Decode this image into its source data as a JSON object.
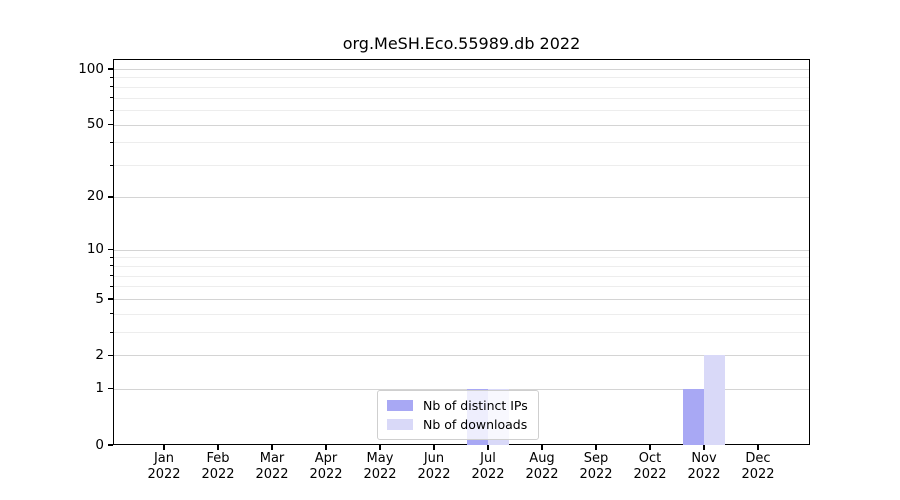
{
  "chart_data": {
    "type": "bar",
    "title": "org.MeSH.Eco.55989.db 2022",
    "categories": [
      "Jan",
      "Feb",
      "Mar",
      "Apr",
      "May",
      "Jun",
      "Jul",
      "Aug",
      "Sep",
      "Oct",
      "Nov",
      "Dec"
    ],
    "year": "2022",
    "series": [
      {
        "name": "Nb of distinct IPs",
        "color": "#a8a8f4",
        "values": [
          0,
          0,
          0,
          0,
          0,
          0,
          1,
          0,
          0,
          0,
          1,
          0
        ]
      },
      {
        "name": "Nb of downloads",
        "color": "#d9d9f8",
        "values": [
          0,
          0,
          0,
          0,
          0,
          0,
          1,
          0,
          0,
          0,
          2,
          0
        ]
      }
    ],
    "yscale": "log1p",
    "ylim": [
      0,
      113
    ],
    "y_major_ticks": [
      0,
      1,
      2,
      5,
      10,
      20,
      50,
      100
    ],
    "y_minor_ticks": [
      3,
      4,
      6,
      7,
      8,
      9,
      30,
      40,
      60,
      70,
      80,
      90
    ],
    "grid": true,
    "legend_position": "lower center",
    "colors": {
      "grid_major": "#d4d4d4",
      "grid_minor": "#ededed",
      "spine": "#000000",
      "background": "#ffffff"
    }
  }
}
